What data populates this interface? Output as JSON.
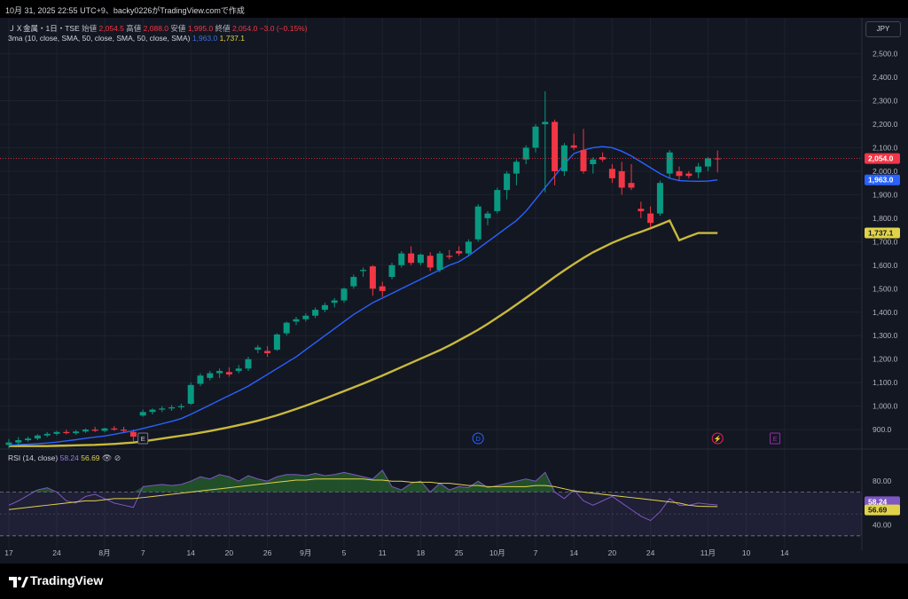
{
  "header": {
    "caption": "10月 31, 2025 22:55 UTC+9、backy0226がTradingView.comで作成"
  },
  "legend": {
    "symbol": "ＪＸ金属・1日・TSE",
    "open_label": "始値",
    "open": "2,054.5",
    "high_label": "高値",
    "high": "2,088.0",
    "low_label": "安値",
    "low": "1,995.0",
    "close_label": "終値",
    "close": "2,054.0",
    "change": "−3.0 (−0.15%)",
    "ma_title": "3ma (10, close, SMA, 50, close, SMA, 50, close, SMA)",
    "ma_value_1": "1,963.0",
    "ma_value_2": "1,737.1"
  },
  "currency": "JPY",
  "rsi": {
    "title": "RSI (14, close)",
    "value": "58.24",
    "ma_value": "56.69"
  },
  "footer": {
    "brand": "TradingView"
  },
  "colors": {
    "up": "#089981",
    "down": "#f23645",
    "ma10": "#2962ff",
    "ma50": "#c9b93c",
    "rsi": "#7e57c2",
    "rsi_ma": "#e0d34a"
  },
  "chart_data": {
    "type": "candlestick",
    "y_axis": {
      "ticks": [
        "900.0",
        "1,000.0",
        "1,100.0",
        "1,200.0",
        "1,300.0",
        "1,400.0",
        "1,500.0",
        "1,600.0",
        "1,700.0",
        "1,800.0",
        "1,900.0",
        "2,000.0",
        "2,100.0",
        "2,200.0",
        "2,300.0",
        "2,400.0",
        "2,500.0"
      ],
      "range": [
        840,
        2540
      ]
    },
    "x_axis": {
      "ticks": [
        {
          "label": "17",
          "i": 0
        },
        {
          "label": "24",
          "i": 5
        },
        {
          "label": "8月",
          "i": 10
        },
        {
          "label": "7",
          "i": 14
        },
        {
          "label": "14",
          "i": 19
        },
        {
          "label": "20",
          "i": 23
        },
        {
          "label": "26",
          "i": 27
        },
        {
          "label": "9月",
          "i": 31
        },
        {
          "label": "5",
          "i": 35
        },
        {
          "label": "11",
          "i": 39
        },
        {
          "label": "18",
          "i": 43
        },
        {
          "label": "25",
          "i": 47
        },
        {
          "label": "10月",
          "i": 51
        },
        {
          "label": "7",
          "i": 55
        },
        {
          "label": "14",
          "i": 59
        },
        {
          "label": "20",
          "i": 63
        },
        {
          "label": "24",
          "i": 67
        },
        {
          "label": "11月",
          "i": 73
        },
        {
          "label": "10",
          "i": 77
        },
        {
          "label": "14",
          "i": 81
        }
      ]
    },
    "candles": [
      [
        835,
        860,
        820,
        845
      ],
      [
        845,
        868,
        835,
        855
      ],
      [
        855,
        870,
        848,
        862
      ],
      [
        862,
        880,
        855,
        875
      ],
      [
        875,
        890,
        868,
        882
      ],
      [
        882,
        895,
        875,
        890
      ],
      [
        890,
        900,
        880,
        885
      ],
      [
        885,
        898,
        878,
        892
      ],
      [
        892,
        905,
        886,
        900
      ],
      [
        900,
        912,
        890,
        895
      ],
      [
        895,
        908,
        888,
        905
      ],
      [
        905,
        915,
        895,
        900
      ],
      [
        900,
        912,
        885,
        895
      ],
      [
        890,
        900,
        850,
        870
      ],
      [
        960,
        985,
        955,
        975
      ],
      [
        975,
        990,
        965,
        985
      ],
      [
        985,
        1000,
        975,
        990
      ],
      [
        990,
        1005,
        980,
        995
      ],
      [
        995,
        1010,
        985,
        1000
      ],
      [
        1010,
        1100,
        1005,
        1090
      ],
      [
        1095,
        1140,
        1085,
        1130
      ],
      [
        1120,
        1150,
        1110,
        1140
      ],
      [
        1140,
        1160,
        1120,
        1150
      ],
      [
        1145,
        1165,
        1125,
        1135
      ],
      [
        1150,
        1175,
        1140,
        1160
      ],
      [
        1160,
        1210,
        1150,
        1200
      ],
      [
        1240,
        1260,
        1225,
        1250
      ],
      [
        1235,
        1255,
        1210,
        1225
      ],
      [
        1240,
        1310,
        1235,
        1305
      ],
      [
        1310,
        1360,
        1300,
        1355
      ],
      [
        1360,
        1380,
        1345,
        1370
      ],
      [
        1370,
        1395,
        1360,
        1385
      ],
      [
        1385,
        1420,
        1375,
        1410
      ],
      [
        1410,
        1440,
        1400,
        1430
      ],
      [
        1440,
        1460,
        1420,
        1450
      ],
      [
        1450,
        1505,
        1440,
        1500
      ],
      [
        1510,
        1560,
        1500,
        1550
      ],
      [
        1575,
        1590,
        1550,
        1580
      ],
      [
        1595,
        1600,
        1470,
        1500
      ],
      [
        1510,
        1530,
        1465,
        1490
      ],
      [
        1550,
        1610,
        1540,
        1600
      ],
      [
        1600,
        1660,
        1590,
        1650
      ],
      [
        1650,
        1680,
        1600,
        1610
      ],
      [
        1610,
        1650,
        1600,
        1645
      ],
      [
        1640,
        1655,
        1575,
        1590
      ],
      [
        1580,
        1660,
        1570,
        1650
      ],
      [
        1640,
        1665,
        1625,
        1635
      ],
      [
        1660,
        1680,
        1640,
        1650
      ],
      [
        1650,
        1710,
        1640,
        1700
      ],
      [
        1710,
        1860,
        1700,
        1850
      ],
      [
        1800,
        1830,
        1770,
        1820
      ],
      [
        1830,
        1930,
        1820,
        1920
      ],
      [
        1920,
        2000,
        1880,
        1990
      ],
      [
        1990,
        2050,
        1940,
        2040
      ],
      [
        2050,
        2110,
        2030,
        2100
      ],
      [
        2100,
        2200,
        2080,
        2190
      ],
      [
        2200,
        2340,
        1910,
        2210
      ],
      [
        2210,
        2220,
        1940,
        2000
      ],
      [
        2000,
        2120,
        1980,
        2110
      ],
      [
        2110,
        2160,
        2090,
        2100
      ],
      [
        2090,
        2180,
        1990,
        2000
      ],
      [
        2030,
        2060,
        1990,
        2050
      ],
      [
        2060,
        2080,
        2040,
        2050
      ],
      [
        2010,
        2030,
        1950,
        1970
      ],
      [
        2000,
        2040,
        1900,
        1930
      ],
      [
        1950,
        2030,
        1920,
        1930
      ],
      [
        1840,
        1870,
        1800,
        1830
      ],
      [
        1820,
        1850,
        1760,
        1780
      ],
      [
        1820,
        1960,
        1810,
        1950
      ],
      [
        1990,
        2090,
        1970,
        2080
      ],
      [
        2000,
        2020,
        1960,
        1980
      ],
      [
        1990,
        2000,
        1970,
        1980
      ],
      [
        1995,
        2035,
        1970,
        2020
      ],
      [
        2020,
        2060,
        2000,
        2055
      ],
      [
        2054.5,
        2088,
        1995,
        2054
      ]
    ],
    "ma10": [
      833,
      836,
      838,
      840,
      843,
      847,
      852,
      857,
      863,
      868,
      873,
      880,
      888,
      895,
      905,
      915,
      925,
      935,
      947,
      965,
      985,
      1005,
      1025,
      1045,
      1065,
      1085,
      1110,
      1135,
      1160,
      1185,
      1210,
      1240,
      1270,
      1300,
      1330,
      1360,
      1390,
      1415,
      1440,
      1460,
      1480,
      1500,
      1520,
      1540,
      1560,
      1580,
      1600,
      1615,
      1640,
      1670,
      1700,
      1730,
      1760,
      1790,
      1830,
      1880,
      1930,
      1980,
      2030,
      2075,
      2090,
      2100,
      2105,
      2100,
      2085,
      2065,
      2040,
      2015,
      1990,
      1970,
      1960,
      1958,
      1957,
      1958,
      1963
    ],
    "ma50": [
      830,
      830,
      830,
      830,
      830,
      831,
      832,
      833,
      834,
      835,
      837,
      839,
      842,
      845,
      850,
      856,
      862,
      868,
      874,
      880,
      887,
      894,
      902,
      910,
      919,
      928,
      938,
      949,
      961,
      974,
      988,
      1002,
      1017,
      1032,
      1048,
      1064,
      1080,
      1096,
      1113,
      1130,
      1148,
      1166,
      1184,
      1202,
      1220,
      1238,
      1258,
      1280,
      1302,
      1325,
      1350,
      1377,
      1404,
      1432,
      1461,
      1490,
      1520,
      1550,
      1578,
      1605,
      1631,
      1655,
      1675,
      1695,
      1712,
      1728,
      1742,
      1757,
      1773,
      1790,
      1706,
      1722,
      1737,
      1737.1,
      1737.1
    ],
    "rsi": {
      "axis_ticks": [
        "80.00",
        "40.00"
      ],
      "range": [
        25,
        98
      ],
      "bands": [
        70,
        30
      ],
      "values": [
        58,
        62,
        67,
        72,
        74,
        70,
        62,
        60,
        66,
        68,
        64,
        60,
        58,
        56,
        75,
        76,
        77,
        76,
        77,
        80,
        84,
        82,
        86,
        84,
        80,
        85,
        82,
        80,
        84,
        86,
        86,
        85,
        87,
        85,
        86,
        88,
        86,
        84,
        82,
        90,
        75,
        72,
        78,
        80,
        70,
        78,
        72,
        75,
        74,
        80,
        74,
        76,
        78,
        80,
        82,
        80,
        88,
        70,
        64,
        72,
        62,
        58,
        62,
        66,
        60,
        54,
        48,
        44,
        52,
        64,
        58,
        58,
        60,
        59,
        58.24
      ],
      "ma": [
        54,
        55,
        56,
        57,
        58,
        59,
        60,
        61,
        62,
        62,
        63,
        64,
        64,
        64,
        65,
        66,
        67,
        68,
        69,
        70,
        71,
        72,
        73,
        74,
        75,
        76,
        77,
        78,
        79,
        80,
        81,
        81,
        82,
        82,
        82,
        82,
        82,
        82,
        81,
        81,
        80,
        80,
        79,
        79,
        79,
        78,
        78,
        77,
        76,
        76,
        75,
        75,
        75,
        75,
        75,
        76,
        76,
        75,
        73,
        71,
        70,
        69,
        68,
        67,
        66,
        65,
        64,
        63,
        62,
        61,
        60,
        58,
        57,
        56.8,
        56.69
      ]
    },
    "markers": [
      {
        "type": "earnings",
        "label": "E",
        "i": 14
      },
      {
        "type": "dividend",
        "label": "D",
        "i": 49
      },
      {
        "type": "split",
        "label": "⚡",
        "i": 74
      },
      {
        "type": "earnings",
        "label": "E",
        "i": 80
      }
    ]
  }
}
